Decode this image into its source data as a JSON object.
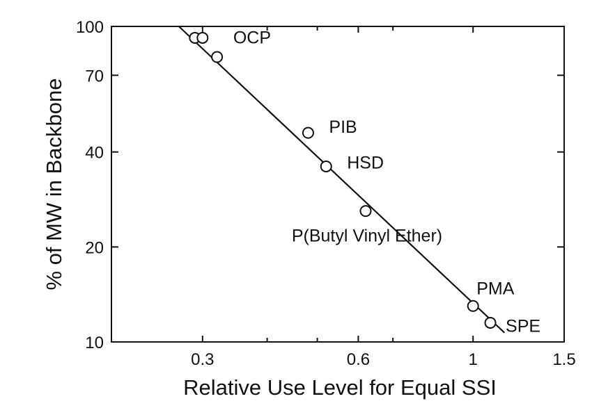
{
  "chart_data": {
    "type": "scatter",
    "title": "",
    "xlabel": "Relative Use Level for Equal SSI",
    "ylabel": "% of MW in Backbone",
    "x_scale": "log",
    "y_scale": "log",
    "xlim": [
      0.2,
      1.5
    ],
    "ylim": [
      10,
      100
    ],
    "x_ticks": [
      {
        "value": 0.3,
        "label": "0.3"
      },
      {
        "value": 0.6,
        "label": "0.6"
      },
      {
        "value": 1,
        "label": "1"
      },
      {
        "value": 1.5,
        "label": "1.5"
      }
    ],
    "y_ticks": [
      {
        "value": 10,
        "label": "10"
      },
      {
        "value": 20,
        "label": "20"
      },
      {
        "value": 40,
        "label": "40"
      },
      {
        "value": 70,
        "label": "70"
      },
      {
        "value": 100,
        "label": "100"
      }
    ],
    "points": [
      {
        "x": 0.29,
        "y": 92,
        "label": "OCP"
      },
      {
        "x": 0.3,
        "y": 92,
        "label": ""
      },
      {
        "x": 0.32,
        "y": 80,
        "label": ""
      },
      {
        "x": 0.48,
        "y": 46,
        "label": "PIB"
      },
      {
        "x": 0.52,
        "y": 36,
        "label": "HSD"
      },
      {
        "x": 0.62,
        "y": 26,
        "label": "P(Butyl  Vinyl  Ether)"
      },
      {
        "x": 1.0,
        "y": 13,
        "label": "PMA"
      },
      {
        "x": 1.08,
        "y": 11.5,
        "label": "SPE"
      }
    ],
    "fit_line": {
      "x": [
        0.27,
        1.15
      ],
      "y": [
        100,
        10.7
      ]
    },
    "grid": false,
    "legend": "none"
  }
}
